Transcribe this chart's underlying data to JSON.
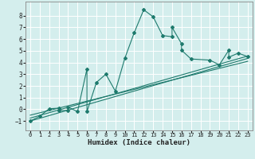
{
  "xlabel": "Humidex (Indice chaleur)",
  "bg_color": "#d4eeed",
  "line_color": "#1e7a6d",
  "grid_color": "#ffffff",
  "xlim": [
    -0.5,
    23.5
  ],
  "ylim": [
    -1.8,
    9.2
  ],
  "xticks": [
    0,
    1,
    2,
    3,
    4,
    5,
    6,
    7,
    8,
    9,
    10,
    11,
    12,
    13,
    14,
    15,
    16,
    17,
    18,
    19,
    20,
    21,
    22,
    23
  ],
  "yticks": [
    -1,
    0,
    1,
    2,
    3,
    4,
    5,
    6,
    7,
    8
  ],
  "scatter_x": [
    0,
    1,
    2,
    3,
    3,
    4,
    4,
    5,
    6,
    6,
    7,
    8,
    9,
    10,
    11,
    12,
    13,
    14,
    15,
    15,
    16,
    16,
    17,
    19,
    20,
    21,
    21,
    22,
    23
  ],
  "scatter_y": [
    -1.0,
    -0.6,
    0.05,
    0.1,
    -0.1,
    -0.1,
    0.2,
    -0.2,
    3.45,
    -0.2,
    2.3,
    3.0,
    1.55,
    4.35,
    6.55,
    8.5,
    7.9,
    6.3,
    6.2,
    7.0,
    5.6,
    5.05,
    4.3,
    4.2,
    3.8,
    5.05,
    4.45,
    4.8,
    4.5
  ],
  "reg_lines": [
    {
      "x": [
        0,
        23
      ],
      "y": [
        -1.0,
        4.35
      ]
    },
    {
      "x": [
        0,
        23
      ],
      "y": [
        -0.75,
        4.55
      ]
    },
    {
      "x": [
        0,
        23
      ],
      "y": [
        -0.5,
        4.1
      ]
    }
  ]
}
